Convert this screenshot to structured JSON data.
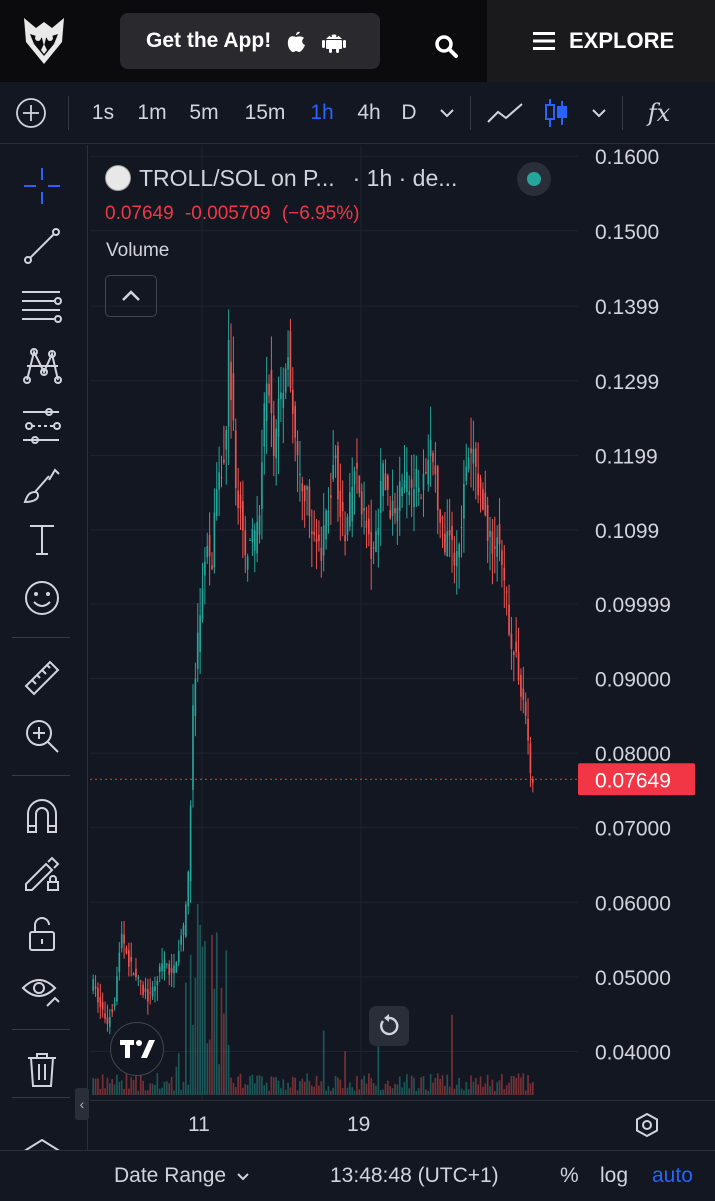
{
  "header": {
    "get_app_label": "Get the App!",
    "explore_label": "EXPLORE",
    "icons": [
      "owl-logo-icon",
      "apple-icon",
      "android-icon",
      "search-icon",
      "menu-icon"
    ]
  },
  "toolbar": {
    "intervals": [
      "1s",
      "1m",
      "5m",
      "15m",
      "1h",
      "4h",
      "D"
    ],
    "active_interval": "1h",
    "fx_label": "fx",
    "accent_color": "#2962ff"
  },
  "chart_header": {
    "pair_title": "TROLL/SOL on P...",
    "interval_info": "· 1h · de...",
    "last_price": "0.07649",
    "change": "-0.005709",
    "change_pct": "(−6.95%)",
    "volume_label": "Volume"
  },
  "chart_data": {
    "type": "candlestick",
    "x_ticks": [
      "11",
      "19"
    ],
    "y_ticks": [
      "0.1600",
      "0.1500",
      "0.1399",
      "0.1299",
      "0.1199",
      "0.1099",
      "0.09999",
      "0.09000",
      "0.08000",
      "0.07000",
      "0.06000",
      "0.05000",
      "0.04000"
    ],
    "current_price_label": "0.07649",
    "current_price_value": 0.07649,
    "ylim": [
      0.0335,
      0.1615
    ],
    "up_color": "#26a69a",
    "down_color": "#ef5350",
    "price_label_color": "#f23645",
    "close_path": [
      [
        0,
        0.049
      ],
      [
        3,
        0.046
      ],
      [
        6,
        0.044
      ],
      [
        9,
        0.047
      ],
      [
        12,
        0.056
      ],
      [
        15,
        0.052
      ],
      [
        18,
        0.05
      ],
      [
        21,
        0.048
      ],
      [
        24,
        0.047
      ],
      [
        27,
        0.05
      ],
      [
        30,
        0.052
      ],
      [
        33,
        0.05
      ],
      [
        36,
        0.054
      ],
      [
        38,
        0.056
      ],
      [
        40,
        0.063
      ],
      [
        41,
        0.074
      ],
      [
        42,
        0.085
      ],
      [
        44,
        0.095
      ],
      [
        46,
        0.103
      ],
      [
        48,
        0.108
      ],
      [
        50,
        0.106
      ],
      [
        52,
        0.115
      ],
      [
        54,
        0.118
      ],
      [
        56,
        0.122
      ],
      [
        57,
        0.134
      ],
      [
        58,
        0.129
      ],
      [
        60,
        0.117
      ],
      [
        62,
        0.112
      ],
      [
        64,
        0.106
      ],
      [
        66,
        0.11
      ],
      [
        68,
        0.108
      ],
      [
        70,
        0.112
      ],
      [
        72,
        0.126
      ],
      [
        74,
        0.13
      ],
      [
        76,
        0.12
      ],
      [
        78,
        0.127
      ],
      [
        80,
        0.129
      ],
      [
        82,
        0.135
      ],
      [
        84,
        0.125
      ],
      [
        86,
        0.118
      ],
      [
        88,
        0.114
      ],
      [
        90,
        0.115
      ],
      [
        92,
        0.108
      ],
      [
        94,
        0.11
      ],
      [
        96,
        0.106
      ],
      [
        98,
        0.112
      ],
      [
        100,
        0.115
      ],
      [
        102,
        0.12
      ],
      [
        104,
        0.112
      ],
      [
        106,
        0.109
      ],
      [
        108,
        0.113
      ],
      [
        110,
        0.118
      ],
      [
        112,
        0.115
      ],
      [
        114,
        0.112
      ],
      [
        116,
        0.108
      ],
      [
        118,
        0.106
      ],
      [
        120,
        0.112
      ],
      [
        122,
        0.118
      ],
      [
        124,
        0.114
      ],
      [
        126,
        0.112
      ],
      [
        128,
        0.114
      ],
      [
        130,
        0.117
      ],
      [
        132,
        0.116
      ],
      [
        134,
        0.115
      ],
      [
        136,
        0.117
      ],
      [
        138,
        0.114
      ],
      [
        140,
        0.118
      ],
      [
        142,
        0.12
      ],
      [
        144,
        0.117
      ],
      [
        146,
        0.112
      ],
      [
        148,
        0.108
      ],
      [
        150,
        0.111
      ],
      [
        152,
        0.106
      ],
      [
        154,
        0.109
      ],
      [
        156,
        0.115
      ],
      [
        158,
        0.119
      ],
      [
        160,
        0.12
      ],
      [
        162,
        0.116
      ],
      [
        164,
        0.113
      ],
      [
        166,
        0.11
      ],
      [
        168,
        0.107
      ],
      [
        170,
        0.109
      ],
      [
        172,
        0.104
      ],
      [
        174,
        0.1
      ],
      [
        176,
        0.095
      ],
      [
        178,
        0.092
      ],
      [
        180,
        0.089
      ],
      [
        182,
        0.085
      ],
      [
        183,
        0.082
      ],
      [
        184,
        0.0765
      ]
    ]
  },
  "bottom_bar": {
    "date_range_label": "Date Range",
    "time_label": "13:48:48 (UTC+1)",
    "percent_label": "%",
    "log_label": "log",
    "auto_label": "auto"
  }
}
